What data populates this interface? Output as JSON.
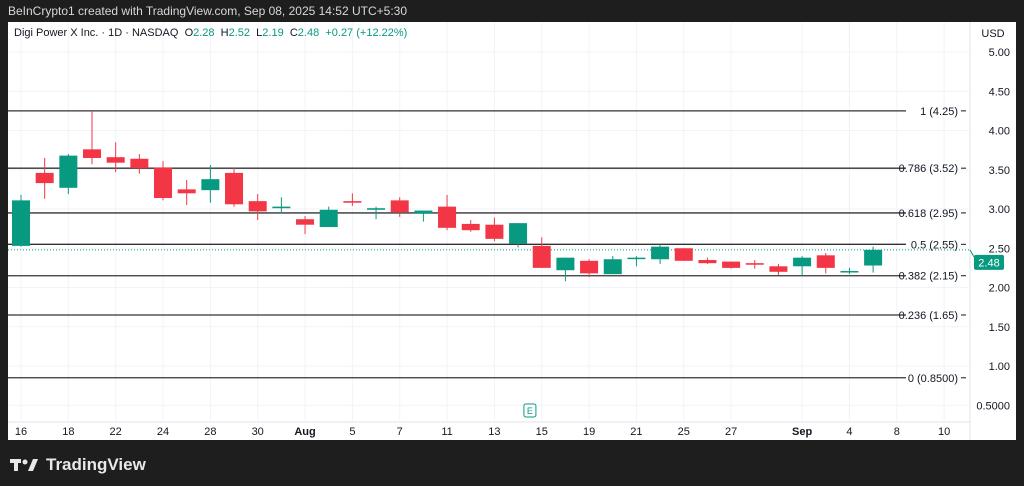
{
  "credit": "BeInCrypto1 created with TradingView.com, Sep 08, 2025 14:52 UTC+5:30",
  "legend": {
    "symbol": "Digi Power X Inc. · 1D · NASDAQ",
    "o_label": "O",
    "o": "2.28",
    "h_label": "H",
    "h": "2.52",
    "l_label": "L",
    "l": "2.19",
    "c_label": "C",
    "c": "2.48",
    "change": "+0.27 (+12.22%)"
  },
  "footer": {
    "brand": "TradingView"
  },
  "colors": {
    "up": "#089981",
    "down": "#f23645",
    "fib": "#333333"
  },
  "chart_data": {
    "type": "candlestick",
    "currency": "USD",
    "ylim": [
      0.35,
      5.25
    ],
    "y_ticks": [
      "5.00",
      "4.50",
      "4.00",
      "3.50",
      "3.00",
      "2.50",
      "2.00",
      "1.50",
      "1.00",
      "0.5000"
    ],
    "x_tick_labels": [
      {
        "i": 0,
        "t": "16"
      },
      {
        "i": 2,
        "t": "18"
      },
      {
        "i": 4,
        "t": "22"
      },
      {
        "i": 6,
        "t": "24"
      },
      {
        "i": 8,
        "t": "28"
      },
      {
        "i": 10,
        "t": "30"
      },
      {
        "i": 12,
        "t": "Aug"
      },
      {
        "i": 14,
        "t": "5"
      },
      {
        "i": 16,
        "t": "7"
      },
      {
        "i": 18,
        "t": "11"
      },
      {
        "i": 20,
        "t": "13"
      },
      {
        "i": 22,
        "t": "15"
      },
      {
        "i": 24,
        "t": "19"
      },
      {
        "i": 26,
        "t": "21"
      },
      {
        "i": 28,
        "t": "25"
      },
      {
        "i": 30,
        "t": "27"
      },
      {
        "i": 33,
        "t": "Sep"
      },
      {
        "i": 35,
        "t": "4"
      },
      {
        "i": 37,
        "t": "8"
      },
      {
        "i": 39,
        "t": "10"
      }
    ],
    "candles": [
      [
        2.53,
        3.18,
        2.52,
        3.11
      ],
      [
        3.46,
        3.65,
        3.13,
        3.33
      ],
      [
        3.27,
        3.7,
        3.19,
        3.68
      ],
      [
        3.76,
        4.25,
        3.57,
        3.65
      ],
      [
        3.66,
        3.85,
        3.47,
        3.59
      ],
      [
        3.64,
        3.7,
        3.45,
        3.52
      ],
      [
        3.53,
        3.61,
        3.11,
        3.14
      ],
      [
        3.25,
        3.37,
        3.05,
        3.2
      ],
      [
        3.24,
        3.56,
        3.08,
        3.38
      ],
      [
        3.46,
        3.53,
        3.03,
        3.06
      ],
      [
        3.1,
        3.19,
        2.86,
        2.97
      ],
      [
        3.01,
        3.15,
        2.94,
        3.03
      ],
      [
        2.87,
        2.91,
        2.68,
        2.8
      ],
      [
        2.77,
        3.03,
        2.77,
        2.99
      ],
      [
        3.1,
        3.2,
        3.04,
        3.08
      ],
      [
        2.99,
        3.03,
        2.87,
        3.01
      ],
      [
        3.11,
        3.15,
        2.9,
        2.96
      ],
      [
        2.94,
        2.98,
        2.84,
        2.98
      ],
      [
        3.03,
        3.18,
        2.73,
        2.76
      ],
      [
        2.81,
        2.86,
        2.71,
        2.73
      ],
      [
        2.8,
        2.89,
        2.59,
        2.62
      ],
      [
        2.56,
        2.82,
        2.51,
        2.82
      ],
      [
        2.53,
        2.64,
        2.25,
        2.25
      ],
      [
        2.22,
        2.38,
        2.08,
        2.38
      ],
      [
        2.34,
        2.36,
        2.13,
        2.18
      ],
      [
        2.17,
        2.4,
        2.17,
        2.36
      ],
      [
        2.37,
        2.4,
        2.27,
        2.38
      ],
      [
        2.36,
        2.55,
        2.3,
        2.52
      ],
      [
        2.5,
        2.5,
        2.34,
        2.34
      ],
      [
        2.35,
        2.38,
        2.3,
        2.31
      ],
      [
        2.33,
        2.33,
        2.24,
        2.25
      ],
      [
        2.31,
        2.35,
        2.24,
        2.29
      ],
      [
        2.27,
        2.3,
        2.16,
        2.2
      ],
      [
        2.27,
        2.4,
        2.16,
        2.38
      ],
      [
        2.41,
        2.44,
        2.18,
        2.25
      ],
      [
        2.2,
        2.25,
        2.17,
        2.21
      ],
      [
        2.28,
        2.52,
        2.19,
        2.48
      ]
    ],
    "fib_levels": [
      {
        "value": 4.25,
        "label": "1 (4.25)"
      },
      {
        "value": 3.52,
        "label": "0.786 (3.52)"
      },
      {
        "value": 2.95,
        "label": "0.618 (2.95)"
      },
      {
        "value": 2.55,
        "label": "0.5 (2.55)"
      },
      {
        "value": 2.15,
        "label": "0.382 (2.15)"
      },
      {
        "value": 1.65,
        "label": "0.236 (1.65)"
      },
      {
        "value": 0.85,
        "label": "0 (0.8500)"
      }
    ],
    "last_price": "2.48",
    "earnings_marker": {
      "index": 21.5,
      "label": "E"
    }
  }
}
